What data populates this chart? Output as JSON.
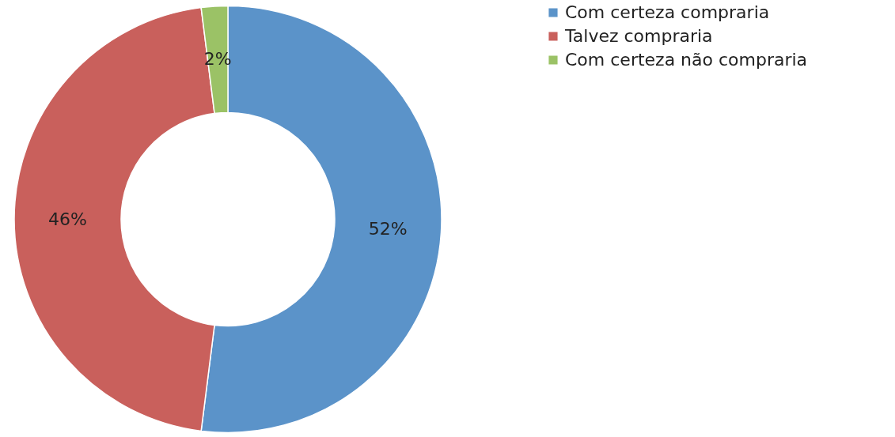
{
  "chart_data": {
    "type": "donut",
    "categories": [
      "Com certeza compraria",
      "Talvez compraria",
      "Com certeza não compraria"
    ],
    "values": [
      52,
      46,
      2
    ],
    "colors": [
      "#5b93c9",
      "#c9605c",
      "#9bc266"
    ],
    "value_labels": [
      "52%",
      "46%",
      "2%"
    ],
    "legend": "right"
  }
}
